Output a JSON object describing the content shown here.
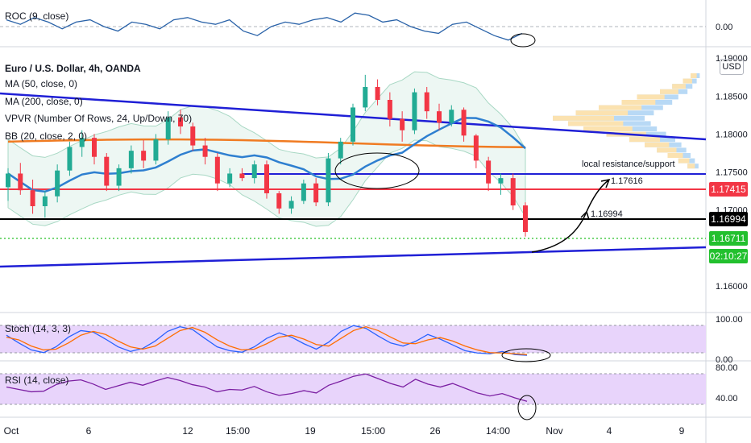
{
  "legends": {
    "roc": "ROC (9, close)",
    "symbol": "Euro / U.S. Dollar, 4h, OANDA",
    "ma50": "MA (50, close, 0)",
    "ma200": "MA (200, close, 0)",
    "vpvr": "VPVR (Number Of Rows, 24, Up/Down, 70)",
    "bb": "BB (20, close, 2, 0)",
    "stoch": "Stoch (14, 3, 3)",
    "rsi": "RSI (14, close)"
  },
  "currency": "USD",
  "badges": {
    "red": "1.17415",
    "black": "1.16994",
    "price": "1.16711",
    "timer": "02:10:27"
  },
  "annotations": {
    "resistance_text": "local resistance/support",
    "level_1": "1.17616",
    "level_2": "1.16994"
  },
  "colors": {
    "up": "#22ab94",
    "down": "#f23645",
    "ma50": "#2e7fd0",
    "ma200": "#f07b22",
    "trend": "#1f1fd6",
    "red_level": "#f23645",
    "green_level": "#26c026",
    "roc_line": "#2962a8",
    "stoch_k": "#2962ff",
    "stoch_d": "#ff6d00",
    "rsi_line": "#7b1fa2",
    "band_fill": "#e8d4fb"
  },
  "chart_data": [
    {
      "type": "line",
      "title": "ROC (9, close)",
      "yticks": [
        "0.00"
      ],
      "series": [
        {
          "values": [
            0.3,
            0.1,
            0.4,
            0.2,
            -0.1,
            0.2,
            0.3,
            0.0,
            -0.2,
            0.2,
            0.1,
            -0.1,
            0.3,
            0.4,
            0.2,
            0.1,
            0.3,
            -0.2,
            -0.4,
            0.0,
            0.2,
            0.1,
            0.3,
            0.4,
            0.2,
            0.6,
            0.5,
            0.2,
            0.3,
            0.0,
            -0.2,
            -0.3,
            0.1,
            0.2,
            -0.1,
            -0.4,
            -0.6,
            -0.3
          ]
        }
      ]
    },
    {
      "type": "candlestick",
      "title": "Euro / U.S. Dollar, 4h, OANDA",
      "ylim": [
        1.1565,
        1.1915
      ],
      "yticks": [
        "1.16000",
        "1.17000",
        "1.17500",
        "1.18000",
        "1.18500",
        "1.19000"
      ],
      "xticks": [
        "Oct",
        "6",
        "12",
        "15:00",
        "19",
        "15:00",
        "26",
        "14:00",
        "Nov",
        "4",
        "9"
      ],
      "last_price": 1.16711,
      "levels": [
        1.17415,
        1.16994,
        1.16711,
        1.17616
      ],
      "ohlc": [
        [
          1.173,
          1.1755,
          1.1712,
          1.1748
        ],
        [
          1.1748,
          1.1762,
          1.172,
          1.1726
        ],
        [
          1.1726,
          1.174,
          1.1695,
          1.1705
        ],
        [
          1.1705,
          1.1725,
          1.169,
          1.1718
        ],
        [
          1.1718,
          1.176,
          1.171,
          1.1752
        ],
        [
          1.1752,
          1.179,
          1.1745,
          1.1783
        ],
        [
          1.1783,
          1.1805,
          1.177,
          1.1795
        ],
        [
          1.1795,
          1.18,
          1.176,
          1.177
        ],
        [
          1.177,
          1.1775,
          1.1725,
          1.1732
        ],
        [
          1.1732,
          1.176,
          1.1725,
          1.1755
        ],
        [
          1.1755,
          1.1785,
          1.1748,
          1.1778
        ],
        [
          1.1778,
          1.1792,
          1.1755,
          1.1765
        ],
        [
          1.1765,
          1.18,
          1.176,
          1.1793
        ],
        [
          1.1793,
          1.183,
          1.1786,
          1.1822
        ],
        [
          1.1822,
          1.1832,
          1.18,
          1.181
        ],
        [
          1.181,
          1.1815,
          1.1778,
          1.1785
        ],
        [
          1.1785,
          1.1795,
          1.176,
          1.177
        ],
        [
          1.177,
          1.1775,
          1.1725,
          1.1735
        ],
        [
          1.1735,
          1.1755,
          1.173,
          1.1748
        ],
        [
          1.1748,
          1.1755,
          1.1738,
          1.1742
        ],
        [
          1.1742,
          1.1765,
          1.1735,
          1.176
        ],
        [
          1.176,
          1.1765,
          1.1715,
          1.1722
        ],
        [
          1.1722,
          1.1725,
          1.1695,
          1.1702
        ],
        [
          1.1702,
          1.1718,
          1.1695,
          1.1712
        ],
        [
          1.1712,
          1.174,
          1.1708,
          1.1735
        ],
        [
          1.1735,
          1.1742,
          1.1705,
          1.171
        ],
        [
          1.171,
          1.1775,
          1.1705,
          1.1768
        ],
        [
          1.1768,
          1.1795,
          1.176,
          1.179
        ],
        [
          1.179,
          1.184,
          1.1785,
          1.1835
        ],
        [
          1.1835,
          1.1878,
          1.183,
          1.1862
        ],
        [
          1.1862,
          1.1872,
          1.1838,
          1.1845
        ],
        [
          1.1845,
          1.1855,
          1.181,
          1.182
        ],
        [
          1.182,
          1.183,
          1.179,
          1.1805
        ],
        [
          1.1805,
          1.186,
          1.18,
          1.1855
        ],
        [
          1.1855,
          1.1862,
          1.182,
          1.183
        ],
        [
          1.183,
          1.184,
          1.1805,
          1.1815
        ],
        [
          1.1815,
          1.1838,
          1.181,
          1.1832
        ],
        [
          1.1832,
          1.1835,
          1.179,
          1.1798
        ],
        [
          1.1798,
          1.18,
          1.1755,
          1.1765
        ],
        [
          1.1765,
          1.177,
          1.1725,
          1.1735
        ],
        [
          1.1735,
          1.1748,
          1.172,
          1.1742
        ],
        [
          1.1742,
          1.1748,
          1.17,
          1.1706
        ],
        [
          1.1706,
          1.171,
          1.1665,
          1.1671
        ]
      ]
    },
    {
      "type": "line",
      "title": "Stoch (14, 3, 3)",
      "ylim": [
        0,
        100
      ],
      "yticks": [
        "100.00",
        "0.00"
      ],
      "series": [
        {
          "values": [
            60,
            40,
            22,
            15,
            30,
            55,
            72,
            68,
            50,
            30,
            18,
            26,
            45,
            70,
            82,
            75,
            52,
            30,
            20,
            16,
            30,
            52,
            66,
            55,
            38,
            24,
            42,
            70,
            85,
            78,
            58,
            40,
            32,
            44,
            62,
            50,
            35,
            20,
            14,
            12,
            18,
            10,
            8
          ]
        },
        {
          "values": [
            55,
            48,
            32,
            22,
            24,
            40,
            60,
            70,
            62,
            45,
            30,
            24,
            32,
            52,
            72,
            80,
            68,
            48,
            32,
            22,
            24,
            38,
            55,
            60,
            50,
            36,
            32,
            52,
            72,
            82,
            72,
            55,
            40,
            38,
            48,
            54,
            45,
            32,
            22,
            15,
            14,
            12,
            10
          ]
        }
      ]
    },
    {
      "type": "line",
      "title": "RSI (14, close)",
      "ylim": [
        0,
        100
      ],
      "yticks": [
        "80.00",
        "40.00"
      ],
      "series": [
        {
          "values": [
            52,
            48,
            44,
            45,
            56,
            62,
            64,
            57,
            48,
            54,
            60,
            55,
            62,
            68,
            63,
            56,
            52,
            44,
            48,
            47,
            53,
            44,
            38,
            41,
            46,
            42,
            55,
            62,
            70,
            74,
            66,
            58,
            52,
            65,
            57,
            52,
            58,
            50,
            42,
            37,
            41,
            34,
            28
          ]
        }
      ]
    }
  ]
}
